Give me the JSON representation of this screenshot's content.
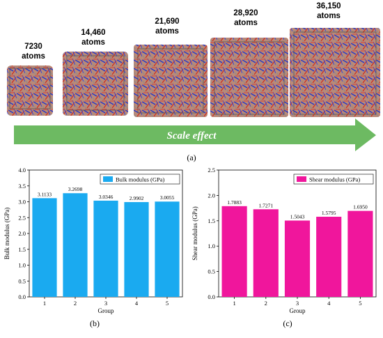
{
  "panel_a": {
    "counts": [
      {
        "n": "7230",
        "unit": "atoms"
      },
      {
        "n": "14,460",
        "unit": "atoms"
      },
      {
        "n": "21,690",
        "unit": "atoms"
      },
      {
        "n": "28,920",
        "unit": "atoms"
      },
      {
        "n": "36,150",
        "unit": "atoms"
      }
    ],
    "arrow_label": "Scale effect",
    "letter": "(a)",
    "arrow_color": "#6dba62"
  },
  "chart_data": [
    {
      "type": "bar",
      "panel": "(b)",
      "categories": [
        "1",
        "2",
        "3",
        "4",
        "5"
      ],
      "values": [
        3.1133,
        3.2698,
        3.0346,
        2.9902,
        3.0055
      ],
      "data_labels": [
        "3.1133",
        "3.2698",
        "3.0346",
        "2.9902",
        "3.0055"
      ],
      "series": [
        {
          "name": "Bulk modulus (GPa)",
          "values": [
            3.1133,
            3.2698,
            3.0346,
            2.9902,
            3.0055
          ]
        }
      ],
      "xlabel": "Group",
      "ylabel": "Bulk modulus (GPa)",
      "ylim": [
        0,
        4.0
      ],
      "yticks": [
        "0.0",
        "0.5",
        "1.0",
        "1.5",
        "2.0",
        "2.5",
        "3.0",
        "3.5",
        "4.0"
      ],
      "color": "#1aaaf0",
      "legend": "top-right",
      "grid": false
    },
    {
      "type": "bar",
      "panel": "(c)",
      "categories": [
        "1",
        "2",
        "3",
        "4",
        "5"
      ],
      "values": [
        1.7883,
        1.7271,
        1.5043,
        1.5795,
        1.695
      ],
      "data_labels": [
        "1.7883",
        "1.7271",
        "1.5043",
        "1.5795",
        "1.6950"
      ],
      "series": [
        {
          "name": "Shear modulus (GPa)",
          "values": [
            1.7883,
            1.7271,
            1.5043,
            1.5795,
            1.695
          ]
        }
      ],
      "xlabel": "Group",
      "ylabel": "Shear modulus (GPa)",
      "ylim": [
        0,
        2.5
      ],
      "yticks": [
        "0.0",
        "0.5",
        "1.0",
        "1.5",
        "2.0",
        "2.5"
      ],
      "color": "#f0169c",
      "legend": "top-right",
      "grid": false
    }
  ]
}
